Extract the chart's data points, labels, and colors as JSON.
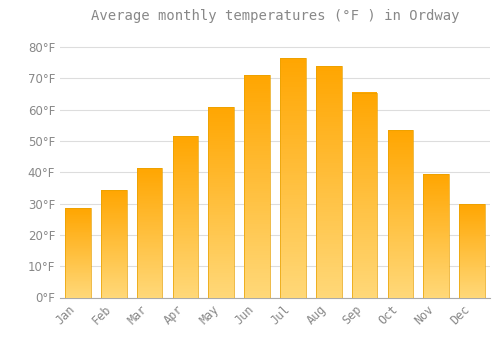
{
  "title": "Average monthly temperatures (°F ) in Ordway",
  "months": [
    "Jan",
    "Feb",
    "Mar",
    "Apr",
    "May",
    "Jun",
    "Jul",
    "Aug",
    "Sep",
    "Oct",
    "Nov",
    "Dec"
  ],
  "values": [
    28.5,
    34.5,
    41.5,
    51.5,
    61.0,
    71.0,
    76.5,
    74.0,
    65.5,
    53.5,
    39.5,
    30.0
  ],
  "bar_color_top": "#FFA500",
  "bar_color_bottom": "#FFD878",
  "background_color": "#FFFFFF",
  "grid_color": "#DDDDDD",
  "text_color": "#888888",
  "ylim": [
    0,
    85
  ],
  "yticks": [
    0,
    10,
    20,
    30,
    40,
    50,
    60,
    70,
    80
  ],
  "title_fontsize": 10,
  "tick_fontsize": 8.5
}
